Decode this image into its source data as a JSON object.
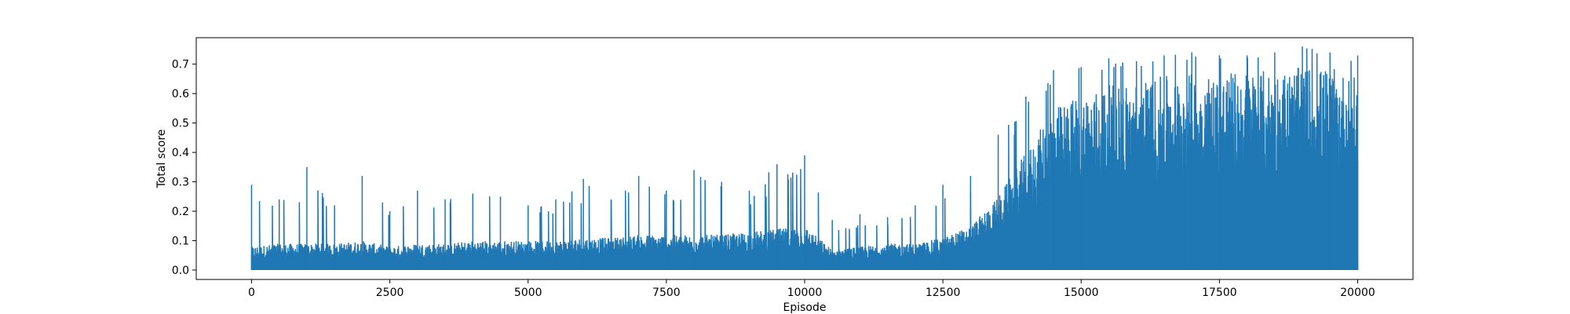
{
  "chart_data": {
    "type": "line",
    "title": "",
    "xlabel": "Episode",
    "ylabel": "Total score",
    "xlim": [
      -1000,
      21000
    ],
    "ylim": [
      -0.032,
      0.79
    ],
    "x_ticks": [
      0,
      2500,
      5000,
      7500,
      10000,
      12500,
      15000,
      17500,
      20000
    ],
    "x_tick_labels": [
      "0",
      "2500",
      "5000",
      "7500",
      "10000",
      "12500",
      "15000",
      "17500",
      "20000"
    ],
    "y_ticks": [
      0.0,
      0.1,
      0.2,
      0.3,
      0.4,
      0.5,
      0.6,
      0.7
    ],
    "y_tick_labels": [
      "0.0",
      "0.1",
      "0.2",
      "0.3",
      "0.4",
      "0.5",
      "0.6",
      "0.7"
    ],
    "grid": false,
    "legend": "none",
    "series": [
      {
        "color": "#1f77b4",
        "x": [
          0,
          500,
          1000,
          1500,
          2000,
          2500,
          3000,
          3500,
          4000,
          4500,
          5000,
          5500,
          6000,
          6500,
          7000,
          7500,
          8000,
          8500,
          9000,
          9500,
          10000,
          10500,
          11000,
          11500,
          12000,
          12500,
          13000,
          13500,
          14000,
          14500,
          15000,
          15500,
          16000,
          16500,
          17000,
          17500,
          18000,
          18500,
          19000,
          19500,
          20000
        ],
        "min": [
          0.0,
          0.0,
          0.0,
          0.0,
          0.0,
          0.0,
          0.0,
          0.0,
          0.0,
          0.0,
          0.0,
          0.0,
          0.0,
          0.0,
          0.0,
          0.0,
          0.0,
          0.0,
          0.0,
          0.0,
          0.0,
          0.0,
          0.0,
          0.0,
          0.0,
          0.0,
          0.0,
          0.0,
          0.0,
          0.0,
          0.0,
          0.0,
          0.0,
          0.0,
          0.0,
          0.0,
          0.0,
          0.0,
          0.0,
          0.0,
          0.0
        ],
        "typical": [
          0.08,
          0.09,
          0.09,
          0.09,
          0.1,
          0.08,
          0.09,
          0.09,
          0.1,
          0.1,
          0.1,
          0.1,
          0.11,
          0.11,
          0.12,
          0.12,
          0.12,
          0.12,
          0.13,
          0.14,
          0.15,
          0.07,
          0.08,
          0.09,
          0.09,
          0.11,
          0.15,
          0.25,
          0.4,
          0.55,
          0.6,
          0.63,
          0.64,
          0.66,
          0.67,
          0.67,
          0.68,
          0.68,
          0.69,
          0.69,
          0.65
        ],
        "max": [
          0.29,
          0.24,
          0.35,
          0.22,
          0.32,
          0.2,
          0.27,
          0.24,
          0.26,
          0.25,
          0.22,
          0.24,
          0.31,
          0.24,
          0.32,
          0.27,
          0.34,
          0.3,
          0.27,
          0.36,
          0.39,
          0.17,
          0.19,
          0.18,
          0.22,
          0.29,
          0.32,
          0.46,
          0.59,
          0.68,
          0.69,
          0.72,
          0.71,
          0.73,
          0.74,
          0.73,
          0.73,
          0.74,
          0.76,
          0.74,
          0.73
        ]
      }
    ]
  }
}
